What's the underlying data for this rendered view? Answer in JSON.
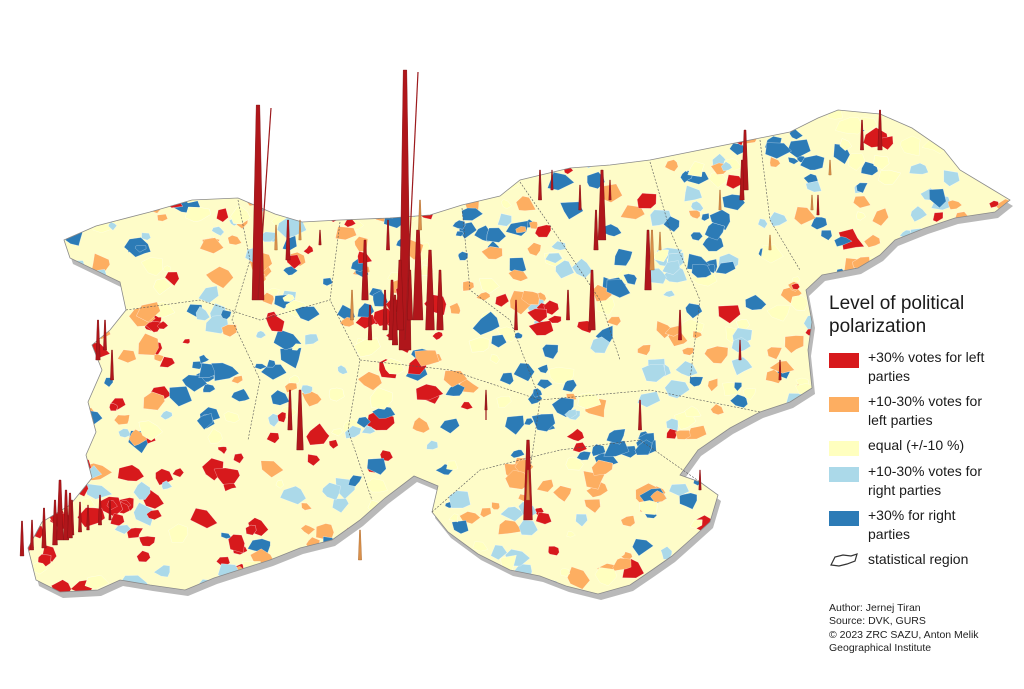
{
  "legend": {
    "title": "Level of political\npolarization",
    "items": [
      {
        "color": "#d7191c",
        "label": "+30% votes for left\nparties"
      },
      {
        "color": "#fdae61",
        "label": "+10-30% votes for\nleft parties"
      },
      {
        "color": "#ffffbf",
        "label": "equal (+/-10 %)"
      },
      {
        "color": "#abd9e9",
        "label": "+10-30% votes for\nright parties"
      },
      {
        "color": "#2c7bb6",
        "label": "+30% for right\nparties"
      }
    ],
    "region_label": "statistical region"
  },
  "credits": {
    "author": "Author: Jernej Tiran",
    "source": "Source: DVK, GURS",
    "copyright": "© 2023 ZRC SAZU, Anton Melik",
    "institute": "Geographical Institute"
  }
}
